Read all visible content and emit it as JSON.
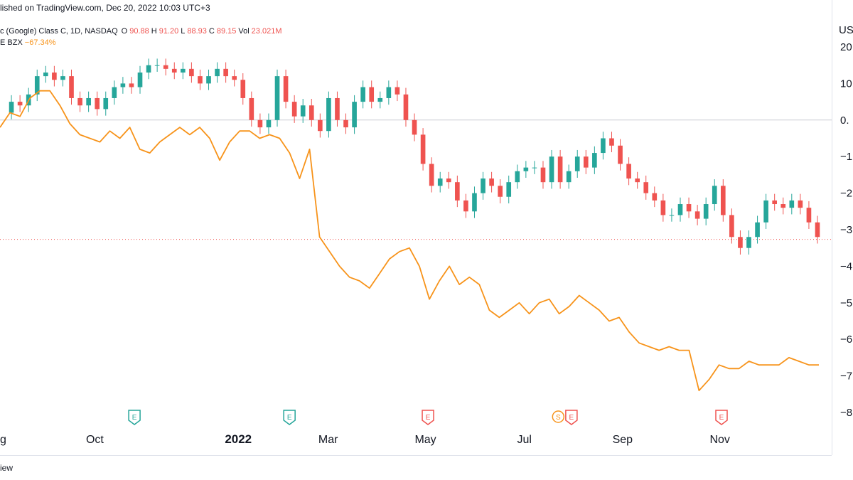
{
  "header": {
    "published": "lished on TradingView.com, Dec 20, 2022 10:03 UTC+3"
  },
  "legend": {
    "symbol": "c (Google) Class C, 1D, NASDAQ",
    "o_label": "O",
    "o_val": "90.88",
    "h_label": "H",
    "h_val": "91.20",
    "l_label": "L",
    "l_val": "88.93",
    "c_label": "C",
    "c_val": "89.15",
    "vol_label": "Vol",
    "vol_val": "23.021M",
    "compare_symbol": "E BZX",
    "compare_change": "−67.34%"
  },
  "axis": {
    "currency": "US"
  },
  "footer": {
    "brand": "iew"
  },
  "colors": {
    "up": "#26a69a",
    "down": "#ef5350",
    "compare": "#f7931a",
    "earnings_green": "#26a69a",
    "earnings_red": "#ef5350",
    "dividend": "#f7931a",
    "grid": "#e0e3eb"
  },
  "chart_data": {
    "type": "line",
    "title": "",
    "xlabel": "",
    "ylabel": "",
    "x_ticks": [
      {
        "label": "g",
        "pos": 0.0
      },
      {
        "label": "Oct",
        "pos": 0.115
      },
      {
        "label": "2022",
        "pos": 0.289
      },
      {
        "label": "Mar",
        "pos": 0.398
      },
      {
        "label": "May",
        "pos": 0.516
      },
      {
        "label": "Jul",
        "pos": 0.636
      },
      {
        "label": "Sep",
        "pos": 0.755
      },
      {
        "label": "Nov",
        "pos": 0.873
      }
    ],
    "y_ticks": [
      "20",
      "10",
      "0.",
      "−1",
      "−2",
      "−3",
      "−4",
      "−5",
      "−6",
      "−7",
      "−8"
    ],
    "ylim": [
      -80,
      20
    ],
    "zero_line": 0,
    "current_level": -32.66,
    "events": [
      {
        "type": "earnings",
        "status": "reported",
        "label": "E",
        "pos": 0.163
      },
      {
        "type": "earnings",
        "status": "reported",
        "label": "E",
        "pos": 0.351
      },
      {
        "type": "earnings",
        "status": "missed",
        "label": "E",
        "pos": 0.519
      },
      {
        "type": "dividend",
        "label": "S",
        "pos": 0.677
      },
      {
        "type": "earnings",
        "status": "missed",
        "label": "E",
        "pos": 0.693
      },
      {
        "type": "earnings",
        "status": "missed",
        "label": "E",
        "pos": 0.875
      }
    ],
    "series": [
      {
        "name": "Class C",
        "style": "candles",
        "values": [
          2,
          5,
          4,
          7,
          12,
          13,
          11,
          12,
          6,
          4,
          6,
          3,
          6,
          9,
          10,
          9,
          13,
          15,
          15,
          14,
          13,
          14,
          12,
          10,
          12,
          14,
          12,
          11,
          6,
          0,
          -2,
          0,
          12,
          5,
          1,
          4,
          0,
          -3,
          6,
          0,
          -2,
          5,
          9,
          5,
          6,
          9,
          7,
          0,
          -4,
          -12,
          -18,
          -16,
          -17,
          -22,
          -25,
          -20,
          -16,
          -18,
          -21,
          -17,
          -14,
          -13,
          -13,
          -17,
          -10,
          -17,
          -14,
          -10,
          -13,
          -9,
          -5,
          -7,
          -12,
          -16,
          -17,
          -20,
          -22,
          -26,
          -26,
          -23,
          -25,
          -27,
          -23,
          -18,
          -26,
          -32,
          -35,
          -32,
          -28,
          -22,
          -23,
          -24,
          -22,
          -24,
          -28,
          -32
        ]
      },
      {
        "name": "E BZX",
        "style": "line",
        "values": [
          -2,
          2,
          1,
          6,
          8,
          8,
          4,
          -1,
          -4,
          -5,
          -6,
          -3,
          -5,
          -2,
          -8,
          -9,
          -6,
          -4,
          -2,
          -4,
          -2,
          -5,
          -11,
          -6,
          -3,
          -3,
          -5,
          -4,
          -5,
          -9,
          -16,
          -8,
          -32,
          -36,
          -40,
          -43,
          -44,
          -46,
          -42,
          -38,
          -36,
          -35,
          -40,
          -49,
          -44,
          -40,
          -45,
          -43,
          -45,
          -52,
          -54,
          -52,
          -50,
          -53,
          -50,
          -49,
          -53,
          -51,
          -48,
          -50,
          -52,
          -55,
          -54,
          -58,
          -61,
          -62,
          -63,
          -62,
          -63,
          -63,
          -74,
          -71,
          -67,
          -68,
          -68,
          -66,
          -67,
          -67,
          -67,
          -65,
          -66,
          -67,
          -67
        ]
      }
    ]
  }
}
